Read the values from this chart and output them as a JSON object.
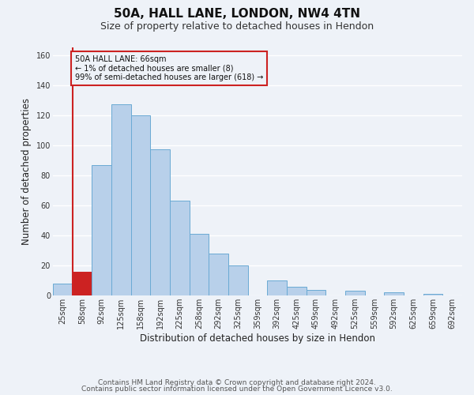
{
  "title": "50A, HALL LANE, LONDON, NW4 4TN",
  "subtitle": "Size of property relative to detached houses in Hendon",
  "xlabel": "Distribution of detached houses by size in Hendon",
  "ylabel": "Number of detached properties",
  "categories": [
    "25sqm",
    "58sqm",
    "92sqm",
    "125sqm",
    "158sqm",
    "192sqm",
    "225sqm",
    "258sqm",
    "292sqm",
    "325sqm",
    "359sqm",
    "392sqm",
    "425sqm",
    "459sqm",
    "492sqm",
    "525sqm",
    "559sqm",
    "592sqm",
    "625sqm",
    "659sqm",
    "692sqm"
  ],
  "values": [
    8,
    16,
    87,
    127,
    120,
    97,
    63,
    41,
    28,
    20,
    0,
    10,
    6,
    4,
    0,
    3,
    0,
    2,
    0,
    1,
    0
  ],
  "bar_color": "#b8d0ea",
  "bar_edge_color": "#6aaad4",
  "highlight_bar_index": 1,
  "highlight_color": "#cc2222",
  "vline_index": 1,
  "annotation_text": "50A HALL LANE: 66sqm\n← 1% of detached houses are smaller (8)\n99% of semi-detached houses are larger (618) →",
  "ylim": [
    0,
    165
  ],
  "yticks": [
    0,
    20,
    40,
    60,
    80,
    100,
    120,
    140,
    160
  ],
  "footer_line1": "Contains HM Land Registry data © Crown copyright and database right 2024.",
  "footer_line2": "Contains public sector information licensed under the Open Government Licence v3.0.",
  "background_color": "#eef2f8",
  "grid_color": "#ffffff",
  "title_fontsize": 11,
  "subtitle_fontsize": 9,
  "axis_label_fontsize": 8.5,
  "tick_fontsize": 7,
  "footer_fontsize": 6.5
}
